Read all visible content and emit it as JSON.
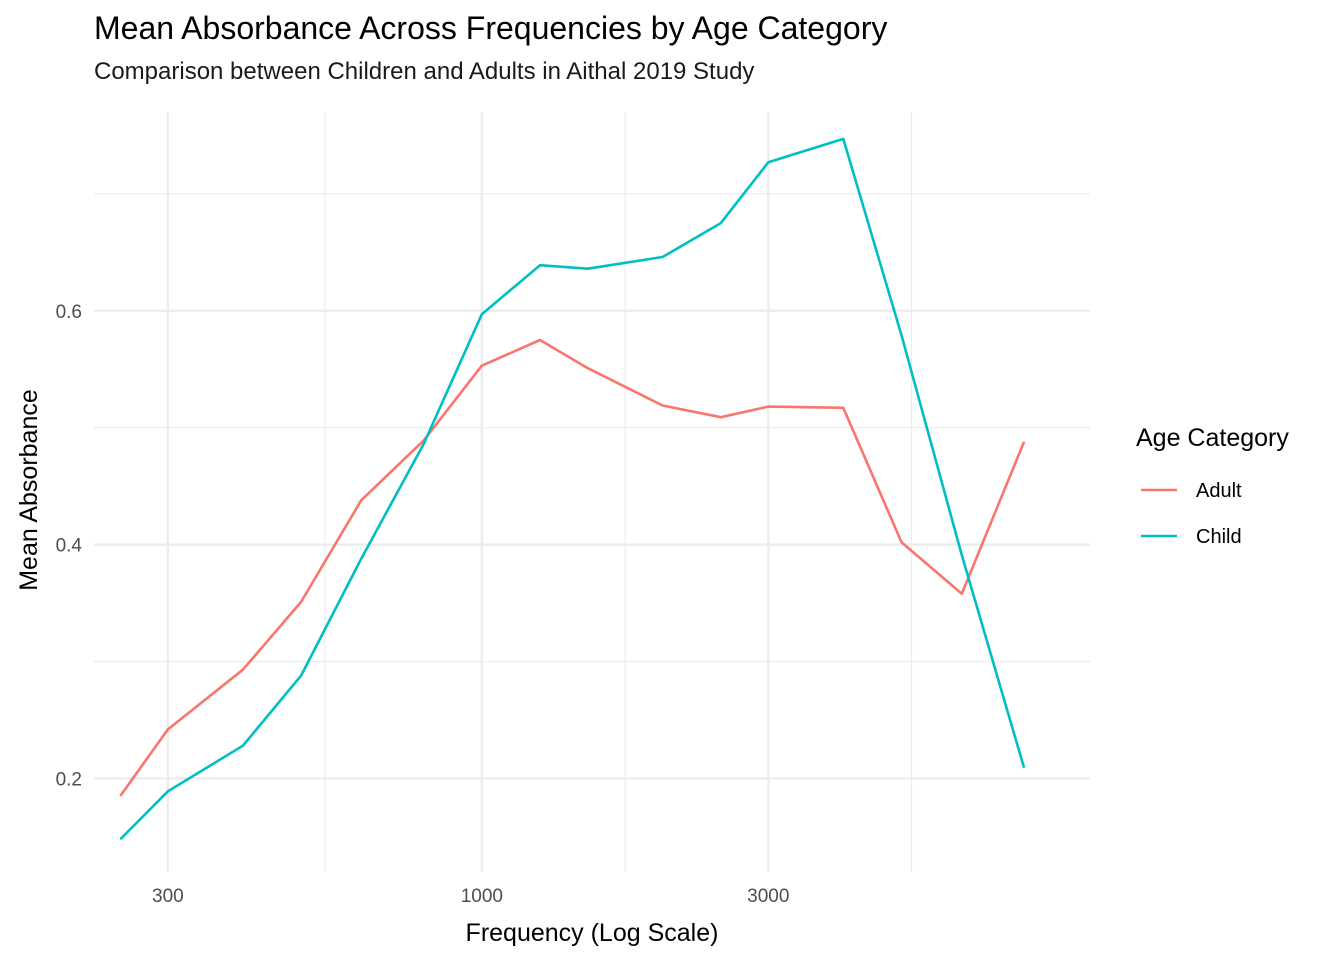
{
  "chart_data": {
    "type": "line",
    "title": "Mean Absorbance Across Frequencies by Age Category",
    "subtitle": "Comparison between Children and Adults in Aithal 2019 Study",
    "xlabel": "Frequency (Log Scale)",
    "ylabel": "Mean Absorbance",
    "x_scale": "log10",
    "xlim": [
      226,
      10300
    ],
    "ylim": [
      0.12,
      0.77
    ],
    "x_ticks": [
      300,
      1000,
      3000
    ],
    "x_tick_labels": [
      "300",
      "1000",
      "3000"
    ],
    "y_ticks": [
      0.2,
      0.4,
      0.6
    ],
    "y_tick_labels": [
      "0.2",
      "0.4",
      "0.6"
    ],
    "grid": true,
    "legend": {
      "title": "Age Category",
      "position": "right"
    },
    "x": [
      250,
      300,
      400,
      500,
      630,
      800,
      1000,
      1250,
      1500,
      2000,
      2500,
      3000,
      4000,
      5000,
      6300,
      8000
    ],
    "series": [
      {
        "name": "Adult",
        "color": "#F8766D",
        "values": [
          0.185,
          0.242,
          0.293,
          0.351,
          0.438,
          0.489,
          0.553,
          0.575,
          0.551,
          0.519,
          0.509,
          0.518,
          0.517,
          0.402,
          0.358,
          0.488
        ]
      },
      {
        "name": "Child",
        "color": "#00BFC4",
        "values": [
          0.148,
          0.189,
          0.228,
          0.288,
          0.388,
          0.486,
          0.597,
          0.639,
          0.636,
          0.646,
          0.675,
          0.727,
          0.747,
          0.579,
          0.391,
          0.209
        ]
      }
    ]
  }
}
